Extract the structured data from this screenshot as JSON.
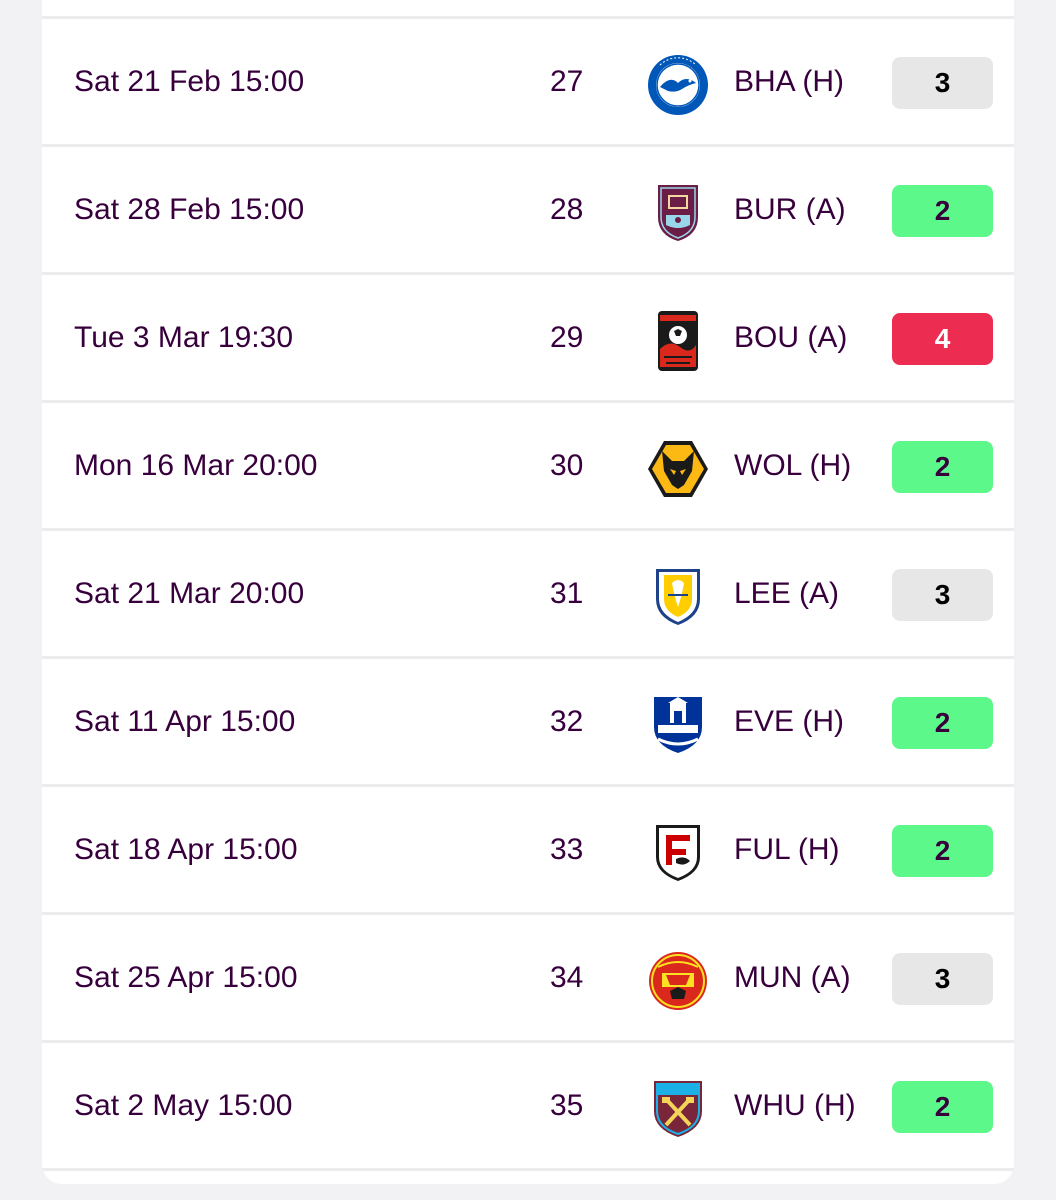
{
  "fixtures": [
    {
      "date": "Sat 21 Feb 15:00",
      "gameweek": "27",
      "opponent": "BHA (H)",
      "difficulty": "3",
      "badge": "brighton-crest-icon"
    },
    {
      "date": "Sat 28 Feb 15:00",
      "gameweek": "28",
      "opponent": "BUR (A)",
      "difficulty": "2",
      "badge": "burnley-crest-icon"
    },
    {
      "date": "Tue 3 Mar 19:30",
      "gameweek": "29",
      "opponent": "BOU (A)",
      "difficulty": "4",
      "badge": "bournemouth-crest-icon"
    },
    {
      "date": "Mon 16 Mar 20:00",
      "gameweek": "30",
      "opponent": "WOL (H)",
      "difficulty": "2",
      "badge": "wolves-crest-icon"
    },
    {
      "date": "Sat 21 Mar 20:00",
      "gameweek": "31",
      "opponent": "LEE (A)",
      "difficulty": "3",
      "badge": "leeds-crest-icon"
    },
    {
      "date": "Sat 11 Apr 15:00",
      "gameweek": "32",
      "opponent": "EVE (H)",
      "difficulty": "2",
      "badge": "everton-crest-icon"
    },
    {
      "date": "Sat 18 Apr 15:00",
      "gameweek": "33",
      "opponent": "FUL (H)",
      "difficulty": "2",
      "badge": "fulham-crest-icon"
    },
    {
      "date": "Sat 25 Apr 15:00",
      "gameweek": "34",
      "opponent": "MUN (A)",
      "difficulty": "3",
      "badge": "man-utd-crest-icon"
    },
    {
      "date": "Sat 2 May 15:00",
      "gameweek": "35",
      "opponent": "WHU (H)",
      "difficulty": "2",
      "badge": "west-ham-crest-icon"
    }
  ],
  "difficulty_colors": {
    "2": "#5cf98a",
    "3": "#e7e7e7",
    "4": "#ec2d51"
  },
  "text_color": "#37003c"
}
